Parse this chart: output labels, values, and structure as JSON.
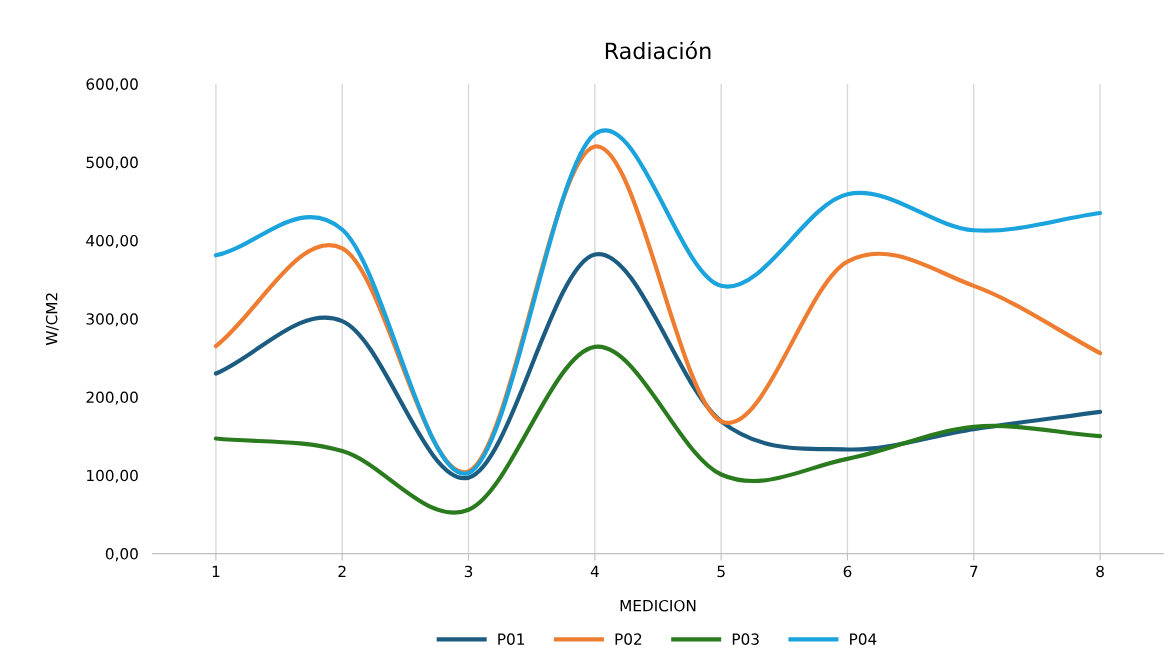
{
  "chart_data": {
    "type": "line",
    "title": "Radiación",
    "xlabel": "MEDICION",
    "ylabel": "W/CM2",
    "categories": [
      "1",
      "2",
      "3",
      "4",
      "5",
      "6",
      "7",
      "8"
    ],
    "series": [
      {
        "name": "P01",
        "color": "#1b5c80",
        "values": [
          230,
          297,
          97,
          382,
          169,
          133,
          159,
          181
        ]
      },
      {
        "name": "P02",
        "color": "#ee7d31",
        "values": [
          265,
          390,
          105,
          520,
          169,
          373,
          342,
          256
        ]
      },
      {
        "name": "P03",
        "color": "#2a7a1e",
        "values": [
          147,
          131,
          56,
          264,
          101,
          121,
          162,
          150
        ]
      },
      {
        "name": "P04",
        "color": "#1aa3dc",
        "values": [
          381,
          414,
          103,
          536,
          342,
          459,
          413,
          435
        ]
      }
    ],
    "ylim": [
      0,
      600
    ],
    "yticks": [
      {
        "value": 0,
        "label": "0,00"
      },
      {
        "value": 100,
        "label": "100,00"
      },
      {
        "value": 200,
        "label": "200,00"
      },
      {
        "value": 300,
        "label": "300,00"
      },
      {
        "value": 400,
        "label": "400,00"
      },
      {
        "value": 500,
        "label": "500,00"
      },
      {
        "value": 600,
        "label": "600,00"
      }
    ],
    "grid": "x",
    "legend": "bottom",
    "marker": "none",
    "line_style": "solid"
  }
}
